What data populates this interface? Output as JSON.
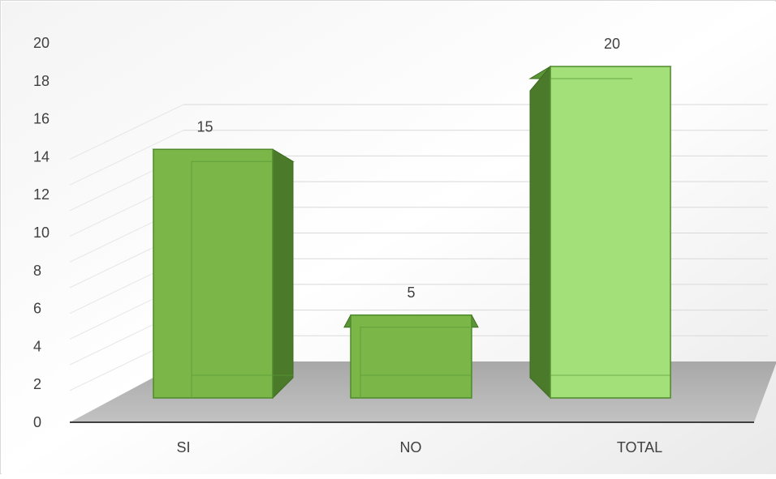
{
  "chart_data": {
    "type": "bar",
    "title": "",
    "xlabel": "",
    "ylabel": "",
    "categories": [
      "SI",
      "NO",
      "TOTAL"
    ],
    "values": [
      15,
      5,
      20
    ],
    "data_labels": [
      "15",
      "5",
      "20"
    ],
    "ylim": [
      0,
      20
    ],
    "yticks": [
      0,
      2,
      4,
      6,
      8,
      10,
      12,
      14,
      16,
      18,
      20
    ],
    "grid": true,
    "legend": "none",
    "style": "3d-column",
    "colors": {
      "bar_front": "#7ab648",
      "bar_side": "#4a7a2a",
      "bar_top": "#5a9636",
      "total_front": "#a3e07a",
      "floor": "#a6a6a6",
      "gridline": "#d9d9d9",
      "axis": "#404040"
    }
  }
}
